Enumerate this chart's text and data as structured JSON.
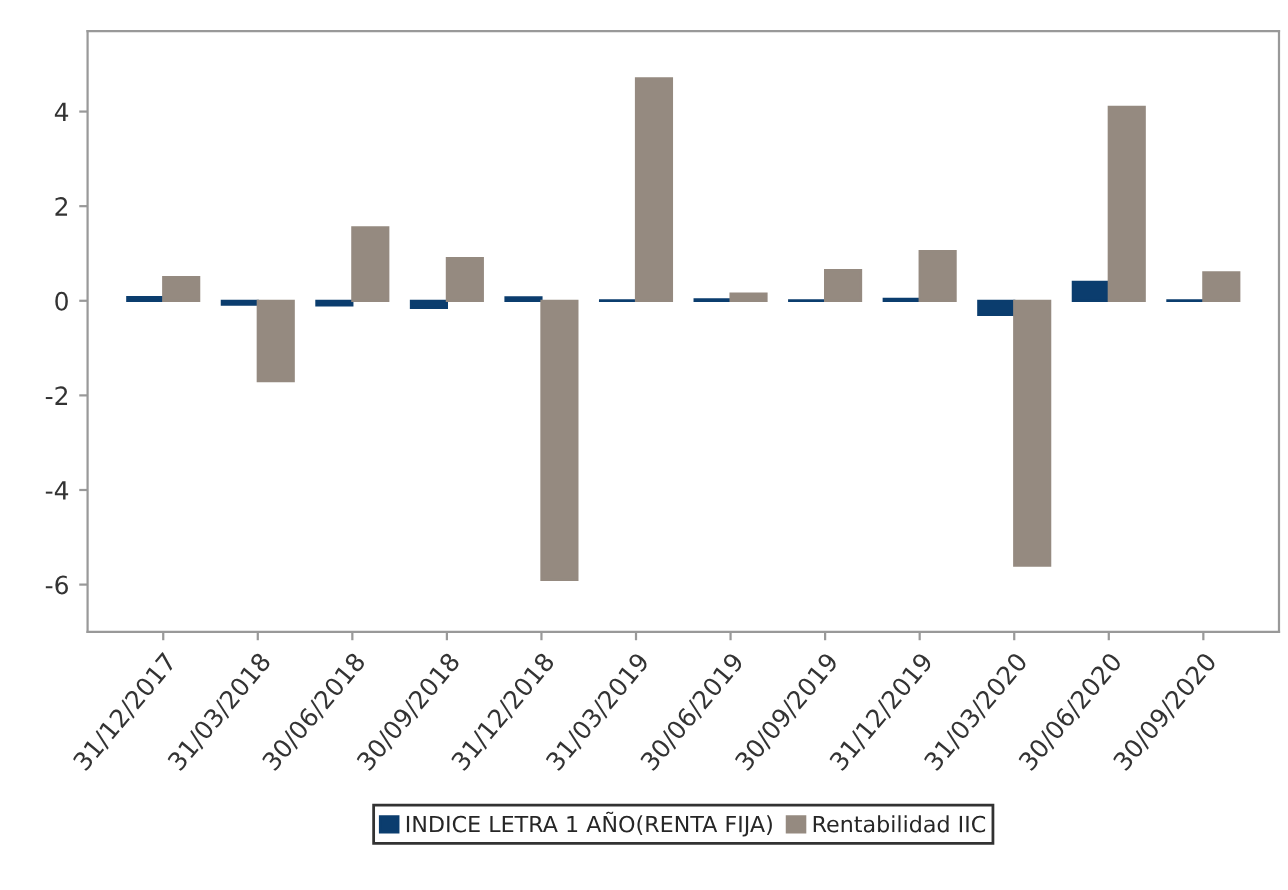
{
  "chart_data": {
    "type": "bar",
    "categories": [
      "31/12/2017",
      "31/03/2018",
      "30/06/2018",
      "30/09/2018",
      "31/12/2018",
      "31/03/2019",
      "30/06/2019",
      "30/09/2019",
      "31/12/2019",
      "31/03/2020",
      "30/06/2020",
      "30/09/2020"
    ],
    "series": [
      {
        "name": "INDICE LETRA 1 AÑO(RENTA FIJA)",
        "color": "#0b3d6e",
        "values": [
          0.08,
          -0.08,
          -0.1,
          -0.15,
          0.07,
          0.01,
          0.03,
          0.01,
          0.04,
          -0.3,
          0.4,
          0.01
        ]
      },
      {
        "name": "Rentabilidad IIC",
        "color": "#958a80",
        "values": [
          0.5,
          -1.7,
          1.55,
          0.9,
          -5.9,
          4.7,
          0.15,
          0.65,
          1.05,
          -5.6,
          4.1,
          0.6
        ]
      }
    ],
    "ylim": [
      -7,
      5.7
    ],
    "yticks": [
      -6,
      -4,
      -2,
      0,
      2,
      4
    ],
    "grid": false,
    "legend": "bottom"
  }
}
